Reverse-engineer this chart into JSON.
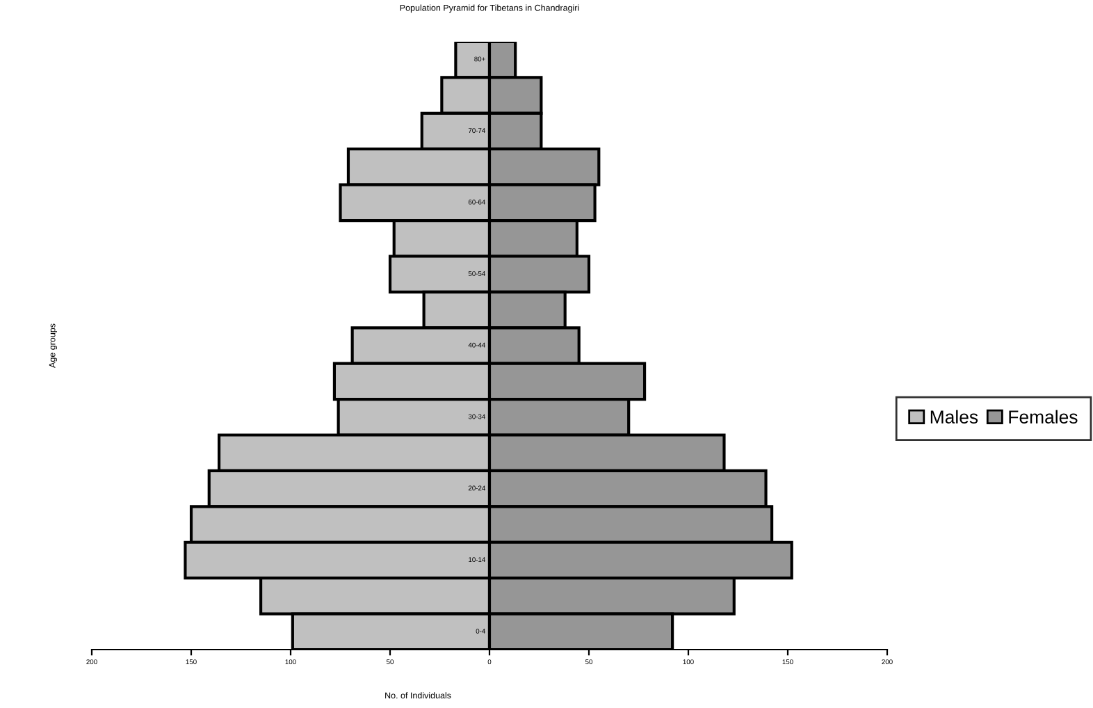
{
  "chart_data": {
    "type": "bar",
    "orientation": "horizontal",
    "title": "Population Pyramid for Tibetans in Chandragiri",
    "xlabel": "No. of Individuals",
    "ylabel": "Age groups",
    "categories": [
      "80+",
      null,
      "70-74",
      null,
      "60-64",
      null,
      "50-54",
      null,
      "40-44",
      null,
      "30-34",
      null,
      "20-24",
      null,
      "10-14",
      null,
      "0-4"
    ],
    "series": [
      {
        "name": "Males",
        "color": "#c0c0c0",
        "values": [
          -17,
          -24,
          -34,
          -71,
          -75,
          -48,
          -50,
          -33,
          -69,
          -78,
          -76,
          -136,
          -141,
          -150,
          -153,
          -115,
          -99
        ]
      },
      {
        "name": "Females",
        "color": "#969696",
        "values": [
          13,
          26,
          26,
          55,
          53,
          44,
          50,
          38,
          45,
          78,
          70,
          118,
          139,
          142,
          152,
          123,
          92
        ]
      }
    ],
    "xlim": [
      -200,
      200
    ],
    "xticks": [
      {
        "value": -200,
        "label": "200"
      },
      {
        "value": -150,
        "label": "150"
      },
      {
        "value": -100,
        "label": "100"
      },
      {
        "value": -50,
        "label": "50"
      },
      0,
      50,
      100,
      150,
      200
    ],
    "stacked": true,
    "grid": false,
    "legend": "right"
  }
}
